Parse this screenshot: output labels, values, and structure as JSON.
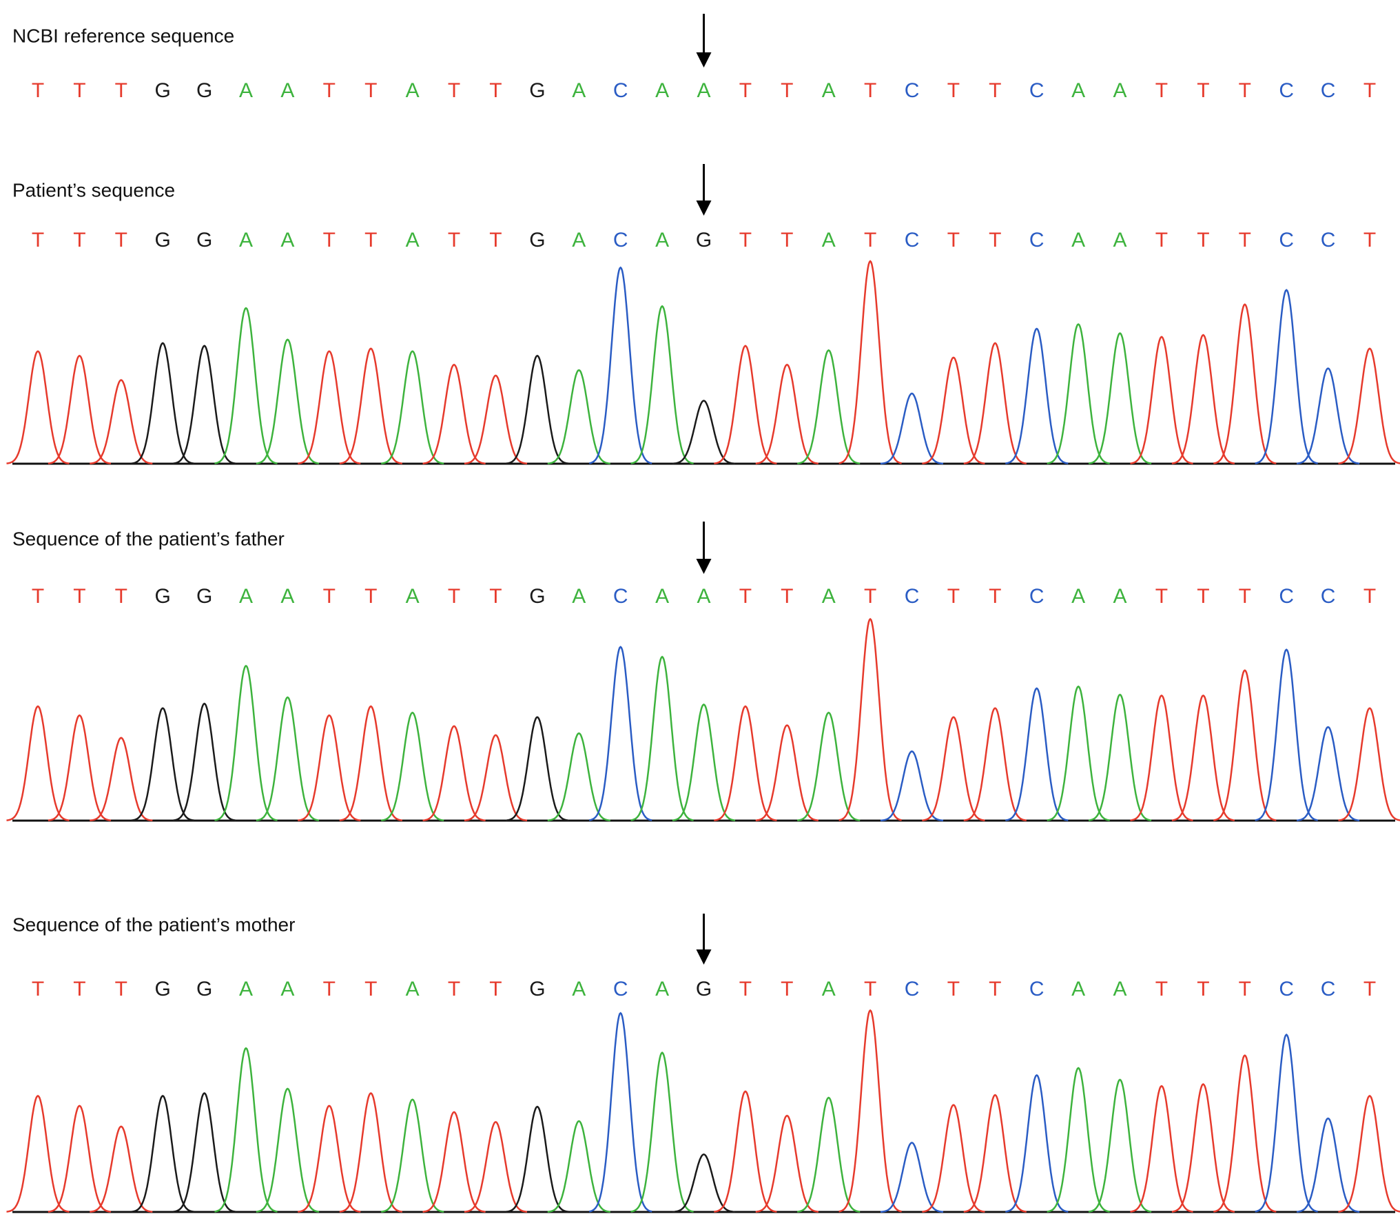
{
  "base_colors": {
    "A": "#3db33d",
    "C": "#2a5cc4",
    "G": "#1a1a1a",
    "T": "#e63a2c"
  },
  "panels": [
    {
      "title": "NCBI reference sequence",
      "bases": [
        "T",
        "T",
        "T",
        "G",
        "G",
        "A",
        "A",
        "T",
        "T",
        "A",
        "T",
        "T",
        "G",
        "A",
        "C",
        "A",
        "A",
        "T",
        "T",
        "A",
        "T",
        "C",
        "T",
        "T",
        "C",
        "A",
        "A",
        "T",
        "T",
        "T",
        "C",
        "C",
        "T"
      ]
    },
    {
      "title": "Patient’s sequence",
      "bases": [
        "T",
        "T",
        "T",
        "G",
        "G",
        "A",
        "A",
        "T",
        "T",
        "A",
        "T",
        "T",
        "G",
        "A",
        "C",
        "A",
        "G",
        "T",
        "T",
        "A",
        "T",
        "C",
        "T",
        "T",
        "C",
        "A",
        "A",
        "T",
        "T",
        "T",
        "C",
        "C",
        "T"
      ],
      "peaks": [
        125,
        120,
        93,
        134,
        131,
        173,
        138,
        125,
        128,
        125,
        110,
        98,
        120,
        104,
        218,
        175,
        70,
        131,
        110,
        126,
        225,
        78,
        118,
        134,
        150,
        155,
        145,
        141,
        143,
        177,
        193,
        106,
        128
      ]
    },
    {
      "title": "Sequence of the patient’s father",
      "bases": [
        "T",
        "T",
        "T",
        "G",
        "G",
        "A",
        "A",
        "T",
        "T",
        "A",
        "T",
        "T",
        "G",
        "A",
        "C",
        "A",
        "A",
        "T",
        "T",
        "A",
        "T",
        "C",
        "T",
        "T",
        "C",
        "A",
        "A",
        "T",
        "T",
        "T",
        "C",
        "C",
        "T"
      ],
      "peaks": [
        127,
        117,
        92,
        125,
        130,
        172,
        137,
        117,
        127,
        120,
        105,
        95,
        115,
        97,
        193,
        182,
        129,
        127,
        106,
        120,
        224,
        77,
        115,
        125,
        147,
        149,
        140,
        139,
        139,
        167,
        190,
        104,
        125
      ]
    },
    {
      "title": "Sequence of the patient’s mother",
      "bases": [
        "T",
        "T",
        "T",
        "G",
        "G",
        "A",
        "A",
        "T",
        "T",
        "A",
        "T",
        "T",
        "G",
        "A",
        "C",
        "A",
        "G",
        "T",
        "T",
        "A",
        "T",
        "C",
        "T",
        "T",
        "C",
        "A",
        "A",
        "T",
        "T",
        "T",
        "C",
        "C",
        "T"
      ],
      "peaks": [
        129,
        118,
        95,
        129,
        132,
        182,
        137,
        118,
        132,
        125,
        111,
        100,
        117,
        101,
        221,
        177,
        64,
        134,
        107,
        127,
        224,
        77,
        119,
        130,
        152,
        160,
        147,
        140,
        142,
        174,
        197,
        104,
        129
      ]
    }
  ]
}
